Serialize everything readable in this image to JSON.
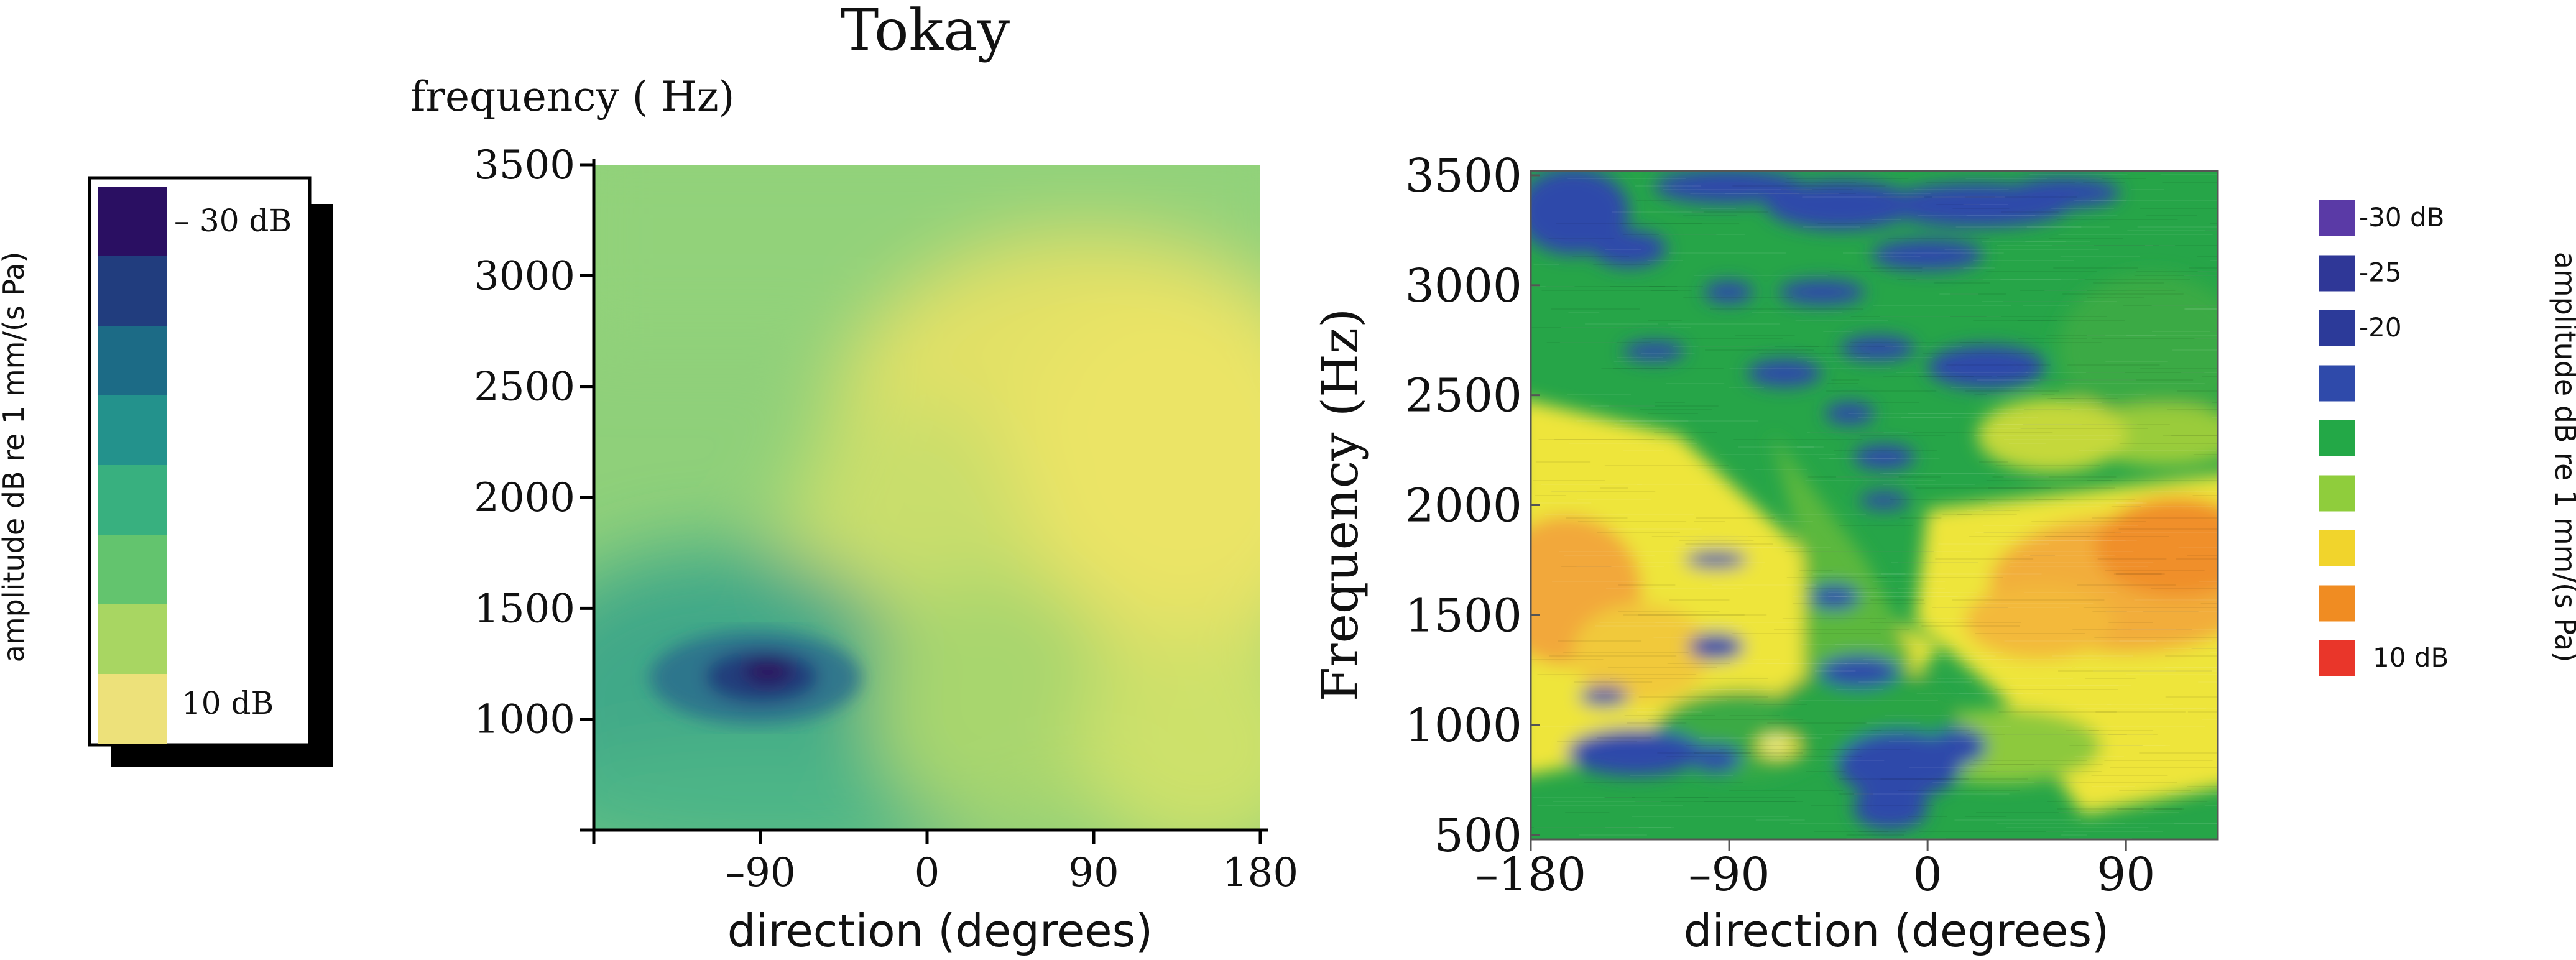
{
  "title": "Tokay",
  "left_colorbar": {
    "label": "amplitude dB re 1 mm/(s Pa)",
    "top_label": "– 30 dB",
    "bottom_label": "10 dB",
    "colors": [
      "#2a0f62",
      "#213d7e",
      "#1c6b86",
      "#23928c",
      "#38b07f",
      "#63c46e",
      "#a8d662",
      "#ede17a"
    ]
  },
  "right_colorbar": {
    "label": "amplitude dB re 1 mm/(s Pa)",
    "entries": [
      {
        "label": "-30 dB",
        "color": "#5a3aa6"
      },
      {
        "label": "-25",
        "color": "#2f3797"
      },
      {
        "label": "-20",
        "color": "#2c3a99"
      },
      {
        "label": "",
        "color": "#2f4aaa"
      },
      {
        "label": "",
        "color": "#23a847"
      },
      {
        "label": "",
        "color": "#8fcd3c"
      },
      {
        "label": "",
        "color": "#f1d42c"
      },
      {
        "label": "",
        "color": "#f08c22"
      },
      {
        "label": "10 dB",
        "color": "#e9362a"
      }
    ]
  },
  "chart_data": [
    {
      "type": "heatmap",
      "ylabel": "frequency ( Hz)",
      "xlabel": "direction (degrees)",
      "xlim": [
        -180,
        180
      ],
      "ylim": [
        500,
        3500
      ],
      "x_ticks": [
        -180,
        -90,
        0,
        90,
        180
      ],
      "x_tick_labels": [
        "",
        "–90",
        "0",
        "90",
        "180"
      ],
      "y_ticks": [
        1000,
        1500,
        2000,
        2500,
        3000,
        3500
      ],
      "y_tick_labels": [
        "1000",
        "1500",
        "2000",
        "2500",
        "3000",
        "3500"
      ],
      "features": [
        {
          "direction": -90,
          "frequency": 1200,
          "level": "-30 dB",
          "note": "minimum"
        },
        {
          "direction": 90,
          "frequency": 2100,
          "level": "10 dB",
          "note": "broad maximum"
        }
      ]
    },
    {
      "type": "heatmap",
      "ylabel": "Frequency (Hz)",
      "xlabel": "direction (degrees)",
      "xlim": [
        -180,
        180
      ],
      "ylim": [
        500,
        3500
      ],
      "x_ticks": [
        -180,
        -90,
        0,
        90
      ],
      "x_tick_labels": [
        "–180",
        "–90",
        "0",
        "90"
      ],
      "y_ticks": [
        500,
        1000,
        1500,
        2000,
        2500,
        3000,
        3500
      ],
      "y_tick_labels": [
        "500",
        "1000",
        "1500",
        "2000",
        "2500",
        "3000",
        "3500"
      ]
    }
  ]
}
